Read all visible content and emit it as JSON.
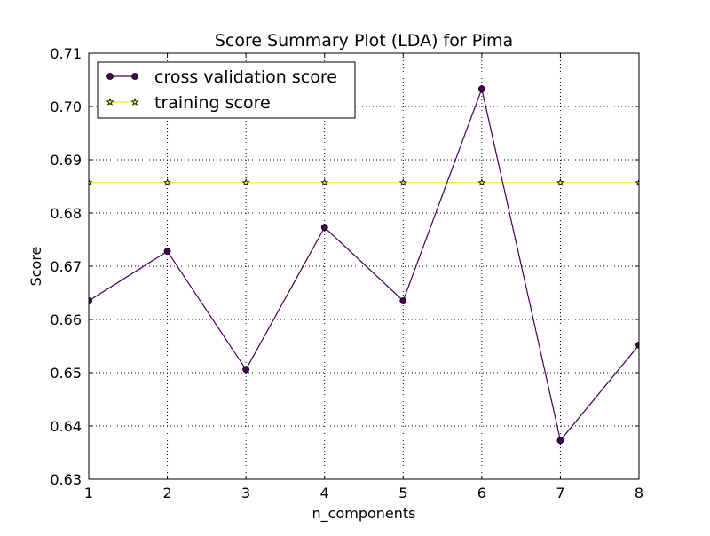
{
  "chart_data": {
    "type": "line",
    "title": "Score Summary Plot (LDA) for Pima",
    "xlabel": "n_components",
    "ylabel": "Score",
    "x": [
      1,
      2,
      3,
      4,
      5,
      6,
      7,
      8
    ],
    "xlim": [
      1,
      8
    ],
    "ylim": [
      0.63,
      0.71
    ],
    "xticks": [
      1,
      2,
      3,
      4,
      5,
      6,
      7,
      8
    ],
    "yticks": [
      0.63,
      0.64,
      0.65,
      0.66,
      0.67,
      0.68,
      0.69,
      0.7,
      0.71
    ],
    "ytick_labels": [
      "0.63",
      "0.64",
      "0.65",
      "0.66",
      "0.67",
      "0.68",
      "0.69",
      "0.70",
      "0.71"
    ],
    "grid": true,
    "legend_position": "upper left",
    "series": [
      {
        "name": "cross validation score",
        "values": [
          0.6635,
          0.6728,
          0.6506,
          0.6773,
          0.6635,
          0.7033,
          0.6373,
          0.6552
        ],
        "color": "#440154",
        "marker": "circle"
      },
      {
        "name": "training score",
        "values": [
          0.6857,
          0.6857,
          0.6857,
          0.6857,
          0.6857,
          0.6857,
          0.6857,
          0.6857
        ],
        "color": "#fde725",
        "marker": "star"
      }
    ]
  }
}
